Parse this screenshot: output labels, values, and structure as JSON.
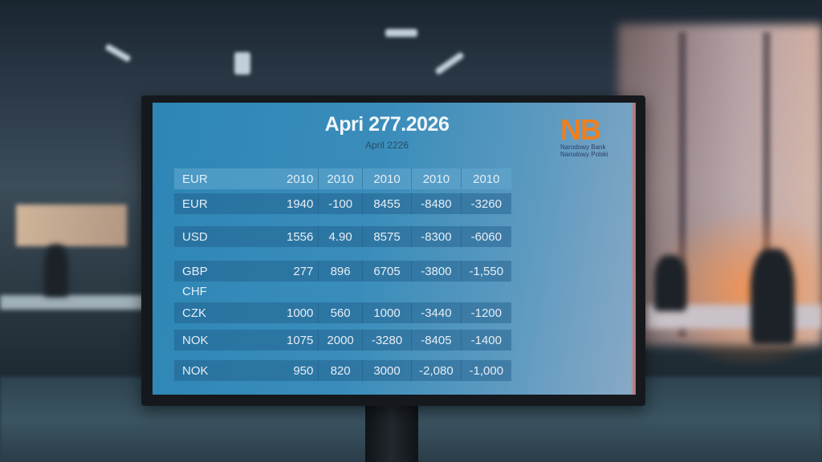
{
  "screen": {
    "title": "Apri 277.2026",
    "subtitle": "April 2226",
    "logo": {
      "mark": "NB",
      "text_line1": "Narodowy Bank",
      "text_line2": "Narodowy Polski",
      "color": "#f07f1e"
    },
    "table": {
      "headers": [
        "EUR",
        "2010",
        "2010",
        "2010",
        "2010",
        "2010"
      ],
      "rows": [
        {
          "label": "EUR",
          "values": [
            "1940",
            "-100",
            "8455",
            "-8480",
            "-3260"
          ]
        },
        {
          "label": "USD",
          "values": [
            "1556",
            "4.90",
            "8575",
            "-8300",
            "-6060"
          ]
        },
        {
          "label": "GBP",
          "values": [
            "277",
            "896",
            "6705",
            "-3800",
            "-1,550"
          ]
        },
        {
          "label": "CHF",
          "values": []
        },
        {
          "label": "CZK",
          "values": [
            "1000",
            "560",
            "1000",
            "-3440",
            "-1200"
          ]
        },
        {
          "label": "NOK",
          "values": [
            "1075",
            "2000",
            "-3280",
            "-8405",
            "-1400"
          ]
        },
        {
          "label": "NOK",
          "values": [
            "950",
            "820",
            "3000",
            "-2,080",
            "-1,000"
          ]
        }
      ]
    }
  }
}
